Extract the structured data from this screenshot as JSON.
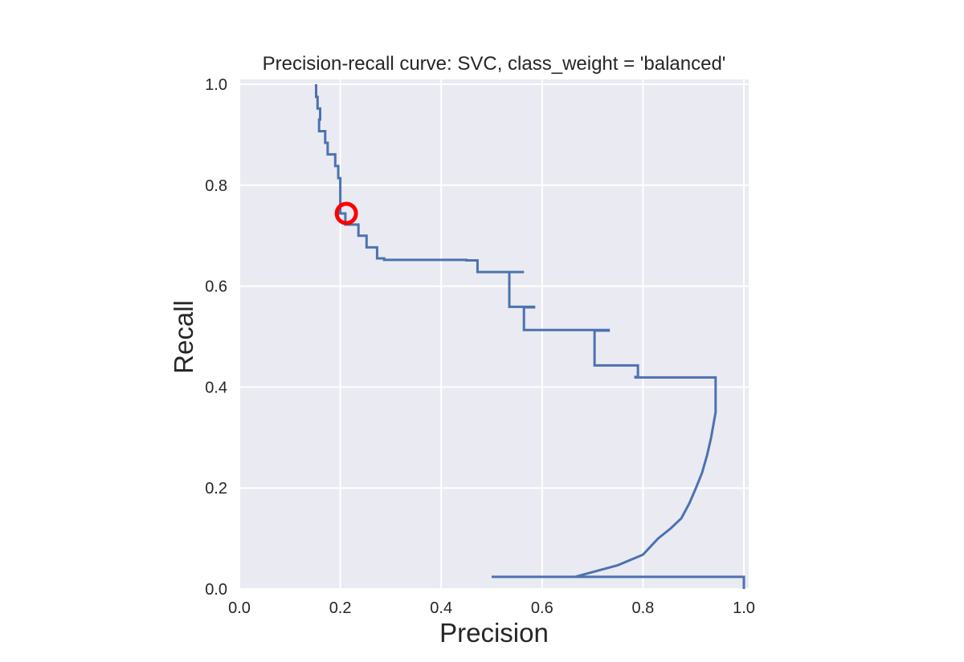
{
  "chart_data": {
    "type": "line",
    "title": "Precision-recall curve: SVC, class_weight = 'balanced'",
    "xlabel": "Precision",
    "ylabel": "Recall",
    "xlim": [
      0.0,
      1.0
    ],
    "ylim": [
      0.0,
      1.0
    ],
    "xticks": [
      "0.0",
      "0.2",
      "0.4",
      "0.6",
      "0.8",
      "1.0"
    ],
    "yticks": [
      "0.0",
      "0.2",
      "0.4",
      "0.6",
      "0.8",
      "1.0"
    ],
    "grid": true,
    "colors": {
      "background": "#eaeaf2",
      "grid": "#ffffff",
      "line": "#4c72b0",
      "marker": "#ff0000"
    },
    "series": [
      {
        "x": [
          0.152,
          0.152,
          0.155,
          0.155,
          0.16,
          0.16,
          0.158,
          0.158,
          0.17,
          0.17,
          0.175,
          0.175,
          0.19,
          0.19,
          0.196,
          0.196,
          0.2,
          0.2,
          0.2,
          0.2,
          0.2,
          0.2,
          0.198,
          0.198,
          0.21,
          0.21,
          0.236,
          0.236,
          0.252,
          0.252,
          0.273,
          0.273,
          0.287,
          0.287,
          0.45,
          0.45,
          0.472,
          0.472,
          0.564,
          0.564,
          0.535,
          0.535,
          0.584,
          0.584,
          0.564,
          0.564,
          0.732,
          0.732,
          0.704,
          0.704,
          0.79,
          0.79,
          0.785,
          0.785,
          0.944,
          0.944,
          0.935,
          0.927,
          0.917,
          0.905,
          0.892,
          0.876,
          0.855,
          0.83,
          0.8,
          0.75,
          0.665,
          0.5,
          1.0,
          1.0
        ],
        "y": [
          1.0,
          0.975,
          0.975,
          0.952,
          0.952,
          0.93,
          0.93,
          0.907,
          0.907,
          0.884,
          0.884,
          0.861,
          0.861,
          0.838,
          0.838,
          0.814,
          0.814,
          0.792,
          0.792,
          0.769,
          0.769,
          0.746,
          0.746,
          0.744,
          0.744,
          0.722,
          0.722,
          0.7,
          0.7,
          0.677,
          0.677,
          0.655,
          0.655,
          0.652,
          0.652,
          0.651,
          0.651,
          0.628,
          0.628,
          0.628,
          0.628,
          0.559,
          0.559,
          0.558,
          0.558,
          0.513,
          0.513,
          0.512,
          0.512,
          0.443,
          0.443,
          0.42,
          0.42,
          0.419,
          0.419,
          0.35,
          0.3,
          0.265,
          0.23,
          0.2,
          0.17,
          0.14,
          0.12,
          0.1,
          0.068,
          0.047,
          0.024,
          0.024,
          0.024,
          0.0
        ]
      }
    ],
    "annotations": [
      {
        "type": "circle-marker",
        "x": 0.212,
        "y": 0.744
      }
    ]
  }
}
